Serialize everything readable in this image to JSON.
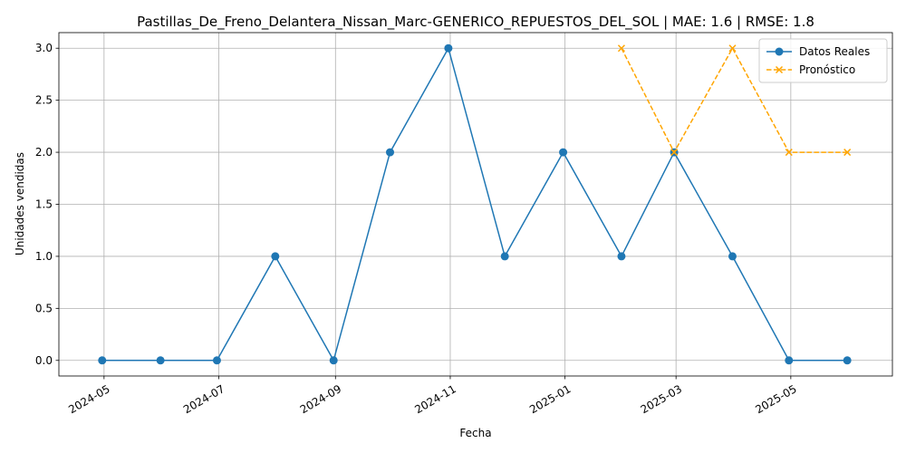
{
  "chart_data": {
    "type": "line",
    "title": "Pastillas_De_Freno_Delantera_Nissan_Marc-GENERICO_REPUESTOS_DEL_SOL | MAE: 1.6 | RMSE: 1.8",
    "xlabel": "Fecha",
    "ylabel": "Unidades vendidas",
    "ylim": [
      -0.15,
      3.15
    ],
    "xlim": [
      "2024-04-07",
      "2025-06-24"
    ],
    "grid": true,
    "legend_position": "top-right",
    "x_ticks": [
      "2024-05",
      "2024-07",
      "2024-09",
      "2024-11",
      "2025-01",
      "2025-03",
      "2025-05"
    ],
    "y_ticks": [
      "0.0",
      "0.5",
      "1.0",
      "1.5",
      "2.0",
      "2.5",
      "3.0"
    ],
    "series": [
      {
        "name": "Datos Reales",
        "color": "#1f77b4",
        "style": "solid",
        "marker": "circle",
        "x": [
          "2024-04-30",
          "2024-05-31",
          "2024-06-30",
          "2024-07-31",
          "2024-08-31",
          "2024-09-30",
          "2024-10-31",
          "2024-11-30",
          "2024-12-31",
          "2025-01-31",
          "2025-02-28",
          "2025-03-31",
          "2025-04-30",
          "2025-05-31"
        ],
        "values": [
          0,
          0,
          0,
          1,
          0,
          2,
          3,
          1,
          2,
          1,
          2,
          1,
          0,
          0
        ]
      },
      {
        "name": "Pronóstico",
        "color": "#ffa500",
        "style": "dashed",
        "marker": "x",
        "x": [
          "2025-01-31",
          "2025-02-28",
          "2025-03-31",
          "2025-04-30",
          "2025-05-31"
        ],
        "values": [
          3,
          2,
          3,
          2,
          2
        ]
      }
    ]
  }
}
